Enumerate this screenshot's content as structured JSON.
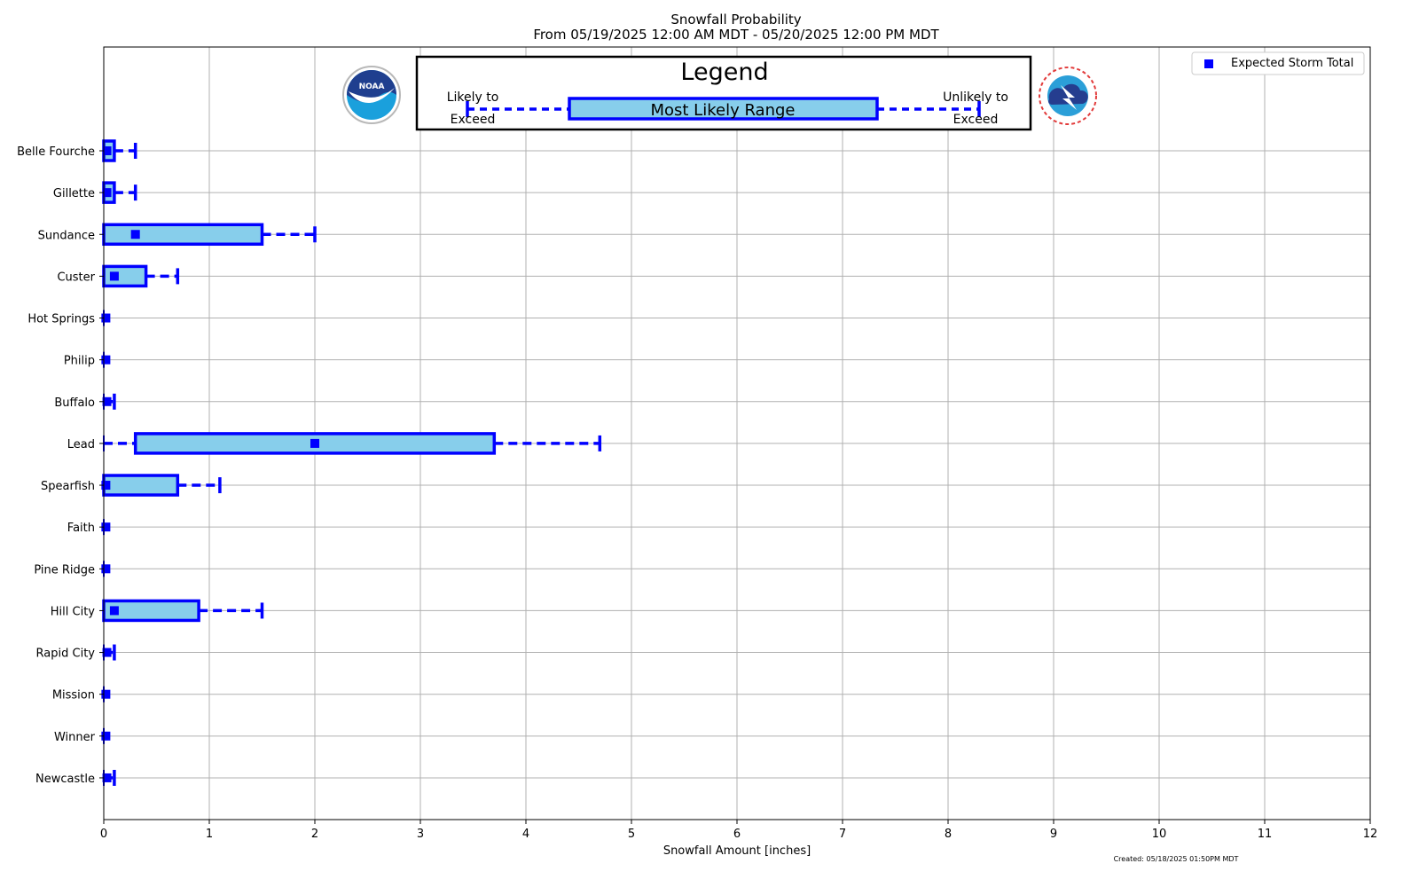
{
  "chart_data": {
    "type": "box-range",
    "title": "Snowfall Probability",
    "subtitle": "From 05/19/2025 12:00 AM MDT - 05/20/2025 12:00 PM MDT",
    "xlabel": "Snowfall Amount [inches]",
    "ylabel": "",
    "xlim": [
      0,
      12
    ],
    "x_ticks": [
      0,
      1,
      2,
      3,
      4,
      5,
      6,
      7,
      8,
      9,
      10,
      11,
      12
    ],
    "grid": true,
    "legend": {
      "placement": "top-right",
      "entries": [
        "Expected Storm Total"
      ]
    },
    "key": {
      "title": "Legend",
      "likely_label_1": "Likely to",
      "likely_label_2": "Exceed",
      "unlikely_label_1": "Unlikely to",
      "unlikely_label_2": "Exceed",
      "range_label": "Most Likely Range"
    },
    "colors": {
      "box_fill": "#87ceeb",
      "box_edge": "#0000ff",
      "marker": "#0000ff",
      "grid": "#b0b0b0"
    },
    "categories": [
      "Belle Fourche",
      "Gillette",
      "Sundance",
      "Custer",
      "Hot Springs",
      "Philip",
      "Buffalo",
      "Lead",
      "Spearfish",
      "Faith",
      "Pine Ridge",
      "Hill City",
      "Rapid City",
      "Mission",
      "Winner",
      "Newcastle"
    ],
    "series": [
      {
        "name": "Likely to Exceed",
        "values": [
          0,
          0,
          0,
          0,
          0,
          0,
          0,
          0,
          0,
          0,
          0,
          0,
          0,
          0,
          0,
          0
        ]
      },
      {
        "name": "Most Likely Range Low",
        "values": [
          0,
          0,
          0,
          0,
          0,
          0,
          0,
          0.3,
          0,
          0,
          0,
          0,
          0,
          0,
          0,
          0
        ]
      },
      {
        "name": "Most Likely Range High",
        "values": [
          0.1,
          0.1,
          1.5,
          0.4,
          0,
          0,
          0,
          3.7,
          0.7,
          0,
          0,
          0.9,
          0,
          0,
          0,
          0
        ]
      },
      {
        "name": "Unlikely to Exceed",
        "values": [
          0.3,
          0.3,
          2.0,
          0.7,
          0,
          0,
          0.1,
          4.7,
          1.1,
          0,
          0,
          1.5,
          0.1,
          0,
          0,
          0.1
        ]
      },
      {
        "name": "Expected Storm Total",
        "values": [
          0.03,
          0.03,
          0.3,
          0.1,
          0.02,
          0.02,
          0.03,
          2.0,
          0.02,
          0.02,
          0.02,
          0.1,
          0.03,
          0.02,
          0.02,
          0.03
        ]
      }
    ],
    "logos": [
      "noaa-logo",
      "nws-logo"
    ],
    "footer": "Created: 05/18/2025 01:50PM MDT"
  }
}
